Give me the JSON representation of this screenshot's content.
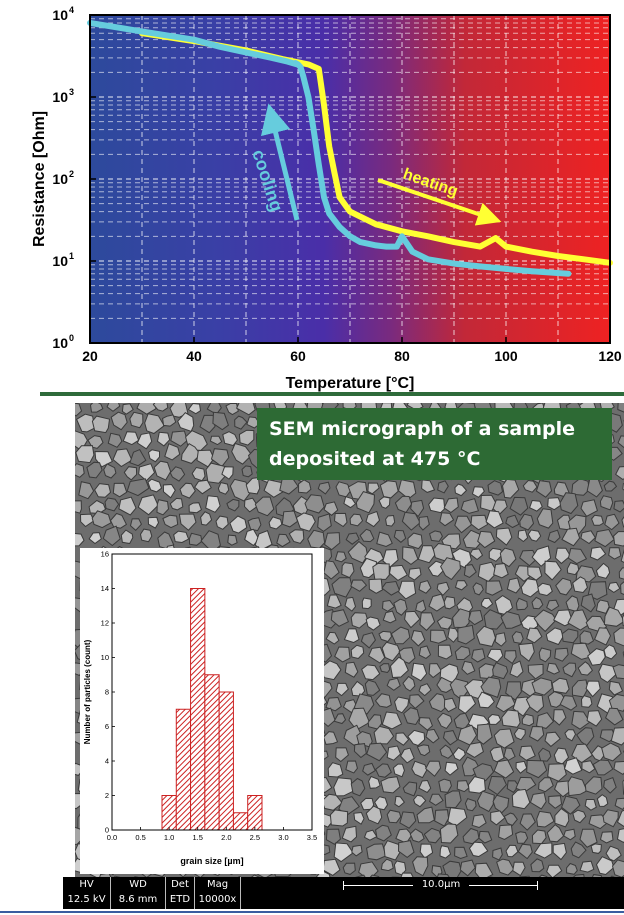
{
  "chart_data": [
    {
      "type": "line",
      "xlabel": "Temperature [°C]",
      "ylabel": "Resistance [Ohm]",
      "xlim": [
        20,
        120
      ],
      "ylim": [
        1,
        10000
      ],
      "yscale": "log",
      "x_ticks": [
        "20",
        "40",
        "60",
        "80",
        "100",
        "120"
      ],
      "y_ticks": [
        {
          "base": "10",
          "exp": "0"
        },
        {
          "base": "10",
          "exp": "1"
        },
        {
          "base": "10",
          "exp": "2"
        },
        {
          "base": "10",
          "exp": "3"
        },
        {
          "base": "10",
          "exp": "4"
        }
      ],
      "grid": true,
      "background": "gradient blue to red",
      "series": [
        {
          "name": "heating",
          "color": "#ffff33",
          "x": [
            30,
            40,
            50,
            57,
            62,
            64,
            65,
            66,
            67,
            68,
            70,
            75,
            80,
            85,
            90,
            95,
            98,
            100,
            105,
            110,
            115,
            120
          ],
          "y": [
            6000,
            4800,
            3700,
            2900,
            2500,
            2200,
            800,
            250,
            120,
            60,
            40,
            28,
            23,
            20,
            17,
            15,
            19,
            15,
            13,
            11.5,
            10.5,
            9.5
          ]
        },
        {
          "name": "cooling",
          "color": "#66ccdd",
          "x": [
            112,
            105,
            100,
            95,
            90,
            85,
            82,
            80,
            79,
            77,
            75,
            72,
            70,
            68,
            66,
            65,
            64,
            63,
            62,
            61,
            60.5,
            60,
            59.5,
            59.8,
            58,
            55,
            50,
            45,
            40,
            30,
            20
          ],
          "y": [
            7,
            7.5,
            8,
            8.6,
            9.3,
            10.5,
            13,
            20,
            15,
            15,
            15.5,
            17,
            20,
            26,
            38,
            60,
            150,
            400,
            1000,
            1800,
            2300,
            2500,
            2600,
            2500,
            2700,
            3000,
            3500,
            4100,
            5000,
            6300,
            8000
          ]
        }
      ],
      "annotations": [
        {
          "text": "cooling",
          "color": "#66ccdd"
        },
        {
          "text": "heating",
          "color": "#ffff33"
        }
      ]
    },
    {
      "type": "bar",
      "xlabel": "grain size [µm]",
      "ylabel": "Number of particles (count)",
      "xlim": [
        0,
        3.5
      ],
      "ylim": [
        0,
        16
      ],
      "x_ticks": [
        "0.0",
        "0.5",
        "1.0",
        "1.5",
        "2.0",
        "2.5",
        "3.0",
        "3.5"
      ],
      "y_ticks": [
        "0",
        "2",
        "4",
        "6",
        "8",
        "10",
        "12",
        "14",
        "16"
      ],
      "bin_width": 0.25,
      "bin_starts": [
        0.875,
        1.125,
        1.375,
        1.625,
        1.875,
        2.125,
        2.375
      ],
      "values": [
        2,
        7,
        14,
        9,
        8,
        1,
        2
      ],
      "bar_color": "#cc2222"
    }
  ],
  "caption": {
    "line1": "SEM micrograph of a sample",
    "line2": "deposited at 475 °C"
  },
  "info_bar": {
    "hv_label": "HV",
    "hv_value": "12.5 kV",
    "wd_label": "WD",
    "wd_value": "8.6 mm",
    "det_label": "Det",
    "det_value": "ETD",
    "mag_label": "Mag",
    "mag_value": "10000x",
    "scale_label": "10.0µm"
  }
}
